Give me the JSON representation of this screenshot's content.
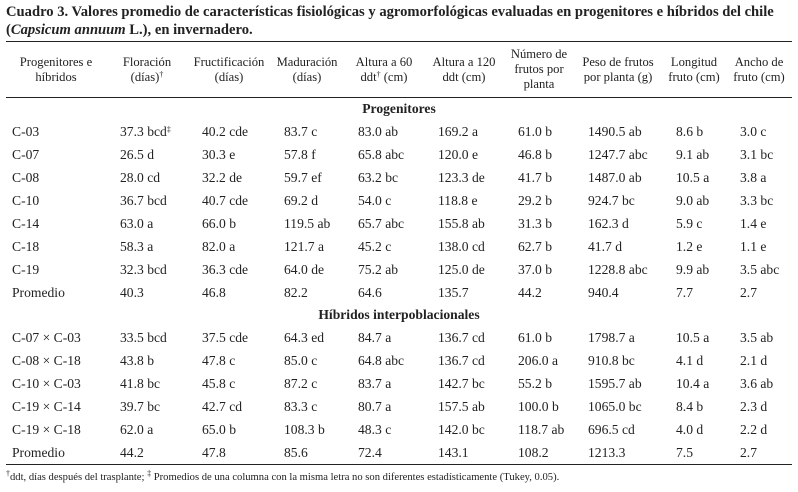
{
  "caption": {
    "prefix": "Cuadro 3. Valores promedio de características fisiológicas y agromorfológicas evaluadas en progenitores e híbridos del chile",
    "species_open": "(",
    "species": "Capsicum annuum",
    "species_rest": " L.), en invernadero."
  },
  "headers": {
    "c0": "Progenitores e híbridos",
    "c1_text": "Floración (días)",
    "c1_mark": "†",
    "c2": "Fructificación (días)",
    "c3": "Maduración (días)",
    "c4_a": "Altura a 60 ddt",
    "c4_mark": "†",
    "c4_b": " (cm)",
    "c5": "Altura a 120 ddt (cm)",
    "c6": "Número de frutos por planta",
    "c7": "Peso de frutos por planta (g)",
    "c8": "Longitud fruto (cm)",
    "c9": "Ancho de fruto (cm)"
  },
  "sections": {
    "progenitores": "Progenitores",
    "hibridos": "Híbridos interpoblacionales"
  },
  "progenitores_rows": [
    [
      "C-03",
      "37.3 bcd",
      "40.2 cde",
      "83.7 c",
      "83.0 ab",
      "169.2 a",
      "61.0 b",
      "1490.5 ab",
      "8.6 b",
      "3.0 c"
    ],
    [
      "C-07",
      "26.5 d",
      "30.3 e",
      "57.8 f",
      "65.8 abc",
      "120.0 e",
      "46.8 b",
      "1247.7 abc",
      "9.1 ab",
      "3.1 bc"
    ],
    [
      "C-08",
      "28.0 cd",
      "32.2 de",
      "59.7 ef",
      "63.2 bc",
      "123.3 de",
      "41.7 b",
      "1487.0 ab",
      "10.5 a",
      "3.8 a"
    ],
    [
      "C-10",
      "36.7 bcd",
      "40.7 cde",
      "69.2 d",
      "54.0 c",
      "118.8 e",
      "29.2 b",
      "924.7 bc",
      "9.0 ab",
      "3.3 bc"
    ],
    [
      "C-14",
      "63.0 a",
      "66.0 b",
      "119.5 ab",
      "65.7 abc",
      "155.8 ab",
      "31.3 b",
      "162.3 d",
      "5.9 c",
      "1.4 e"
    ],
    [
      "C-18",
      "58.3 a",
      "82.0 a",
      "121.7 a",
      "45.2 c",
      "138.0 cd",
      "62.7 b",
      "41.7 d",
      "1.2 e",
      "1.1 e"
    ],
    [
      "C-19",
      "32.3 bcd",
      "36.3 cde",
      "64.0 de",
      "75.2 ab",
      "125.0 de",
      "37.0 b",
      "1228.8 abc",
      "9.9 ab",
      "3.5 abc"
    ],
    [
      "Promedio",
      "40.3",
      "46.8",
      "82.2",
      "64.6",
      "135.7",
      "44.2",
      "940.4",
      "7.7",
      "2.7"
    ]
  ],
  "progenitores_mark": "‡",
  "hibridos_rows": [
    [
      "C-07 × C-03",
      "33.5 bcd",
      "37.5 cde",
      "64.3 ed",
      "84.7 a",
      "136.7 cd",
      "61.0 b",
      "1798.7 a",
      "10.5 a",
      "3.5 ab"
    ],
    [
      "C-08 × C-18",
      "43.8 b",
      "47.8 c",
      "85.0 c",
      "64.8 abc",
      "136.7 cd",
      "206.0 a",
      "910.8 bc",
      "4.1 d",
      "2.1 d"
    ],
    [
      "C-10 × C-03",
      "41.8 bc",
      "45.8 c",
      "87.2 c",
      "83.7 a",
      "142.7 bc",
      "55.2 b",
      "1595.7 ab",
      "10.4 a",
      "3.6 ab"
    ],
    [
      "C-19 × C-14",
      "39.7 bc",
      "42.7 cd",
      "83.3 c",
      "80.7 a",
      "157.5 ab",
      "100.0 b",
      "1065.0 bc",
      "8.4 b",
      "2.3 d"
    ],
    [
      "C-19 × C-18",
      "62.0 a",
      "65.0 b",
      "108.3 b",
      "48.3 c",
      "142.0 bc",
      "118.7 ab",
      "696.5 cd",
      "4.0 d",
      "2.2 d"
    ],
    [
      "Promedio",
      "44.2",
      "47.8",
      "85.6",
      "72.4",
      "143.1",
      "108.2",
      "1213.3",
      "7.5",
      "2.7"
    ]
  ],
  "footnote": {
    "mark1": "†",
    "text1": "ddt, días después del trasplante; ",
    "mark2": "‡",
    "text2": " Promedios de una columna con la misma letra no son diferentes estadísticamente (Tukey, 0.05)."
  }
}
